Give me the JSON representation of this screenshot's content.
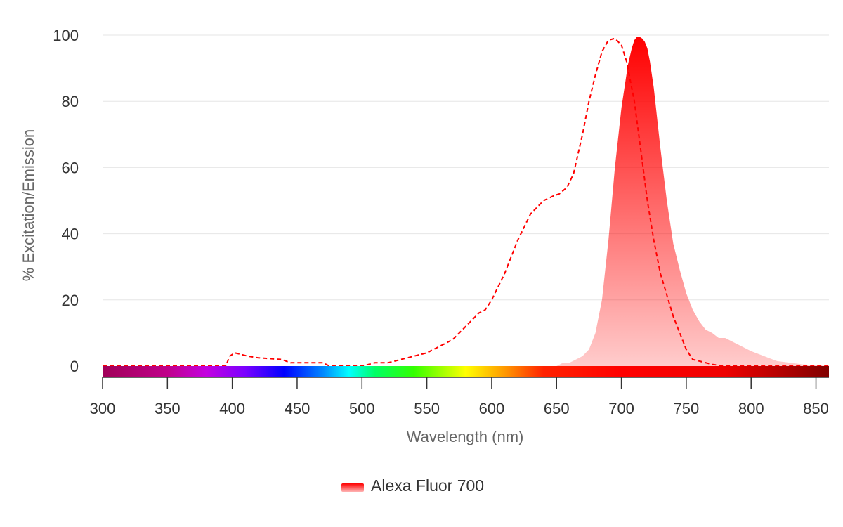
{
  "chart_data": {
    "type": "area",
    "xlabel": "Wavelength (nm)",
    "ylabel": "% Excitation/Emission",
    "xlim": [
      300,
      860
    ],
    "ylim": [
      0,
      100
    ],
    "x_ticks": [
      300,
      350,
      400,
      450,
      500,
      550,
      600,
      650,
      700,
      750,
      800,
      850
    ],
    "y_ticks": [
      0,
      20,
      40,
      60,
      80,
      100
    ],
    "grid": true,
    "legend_position": "bottom-center",
    "legend": [
      "Alexa Fluor 700"
    ],
    "series": [
      {
        "name": "Alexa Fluor 700",
        "color": "#ff0000",
        "excitation": {
          "style": "dashed-line",
          "x": [
            300,
            395,
            398,
            402,
            407,
            412,
            420,
            438,
            445,
            470,
            475,
            500,
            510,
            520,
            530,
            540,
            550,
            560,
            570,
            580,
            590,
            595,
            600,
            610,
            620,
            630,
            640,
            648,
            652,
            658,
            663,
            670,
            675,
            680,
            685,
            690,
            695,
            700,
            704,
            710,
            715,
            720,
            725,
            730,
            740,
            750,
            755,
            760,
            770,
            780,
            800,
            830,
            860
          ],
          "y": [
            0,
            0,
            3,
            4,
            3.5,
            3,
            2.5,
            2,
            1,
            1,
            0,
            0,
            1,
            1,
            2,
            3,
            4,
            6,
            8,
            12,
            16,
            17,
            20,
            28,
            38,
            46,
            50,
            51.5,
            52,
            54,
            58,
            70,
            80,
            88,
            95,
            98.5,
            99,
            97,
            92,
            80,
            65,
            50,
            38,
            28,
            15,
            5,
            2,
            1.5,
            0.5,
            0,
            0,
            0,
            0
          ]
        },
        "emission": {
          "style": "filled-area",
          "x": [
            300,
            650,
            655,
            660,
            665,
            670,
            675,
            680,
            685,
            690,
            695,
            700,
            705,
            708,
            710,
            712,
            714,
            716,
            718,
            720,
            722,
            725,
            730,
            735,
            740,
            745,
            750,
            755,
            760,
            765,
            770,
            775,
            780,
            785,
            790,
            800,
            810,
            820,
            830,
            840,
            850,
            860
          ],
          "y": [
            0,
            0,
            1,
            1,
            2,
            3,
            5,
            10,
            20,
            38,
            60,
            78,
            91,
            96,
            98.5,
            99.5,
            99.5,
            99,
            98,
            96,
            92,
            84,
            66,
            50,
            37,
            29,
            22,
            17,
            13.5,
            11,
            10,
            8.5,
            8.5,
            7.5,
            6.5,
            4.5,
            3,
            1.5,
            1,
            0.5,
            0.3,
            0
          ]
        }
      }
    ],
    "spectrum_bar": {
      "stops": [
        {
          "nm": 300,
          "color": "#a00058"
        },
        {
          "nm": 350,
          "color": "#c0008a"
        },
        {
          "nm": 380,
          "color": "#c300e0"
        },
        {
          "nm": 410,
          "color": "#7a00ff"
        },
        {
          "nm": 440,
          "color": "#0000ff"
        },
        {
          "nm": 470,
          "color": "#0088ff"
        },
        {
          "nm": 490,
          "color": "#00ffff"
        },
        {
          "nm": 510,
          "color": "#00ff66"
        },
        {
          "nm": 540,
          "color": "#33ff00"
        },
        {
          "nm": 580,
          "color": "#ffff00"
        },
        {
          "nm": 610,
          "color": "#ff9900"
        },
        {
          "nm": 640,
          "color": "#ff2200"
        },
        {
          "nm": 700,
          "color": "#ff0000"
        },
        {
          "nm": 780,
          "color": "#ee0000"
        },
        {
          "nm": 860,
          "color": "#800000"
        }
      ]
    }
  }
}
